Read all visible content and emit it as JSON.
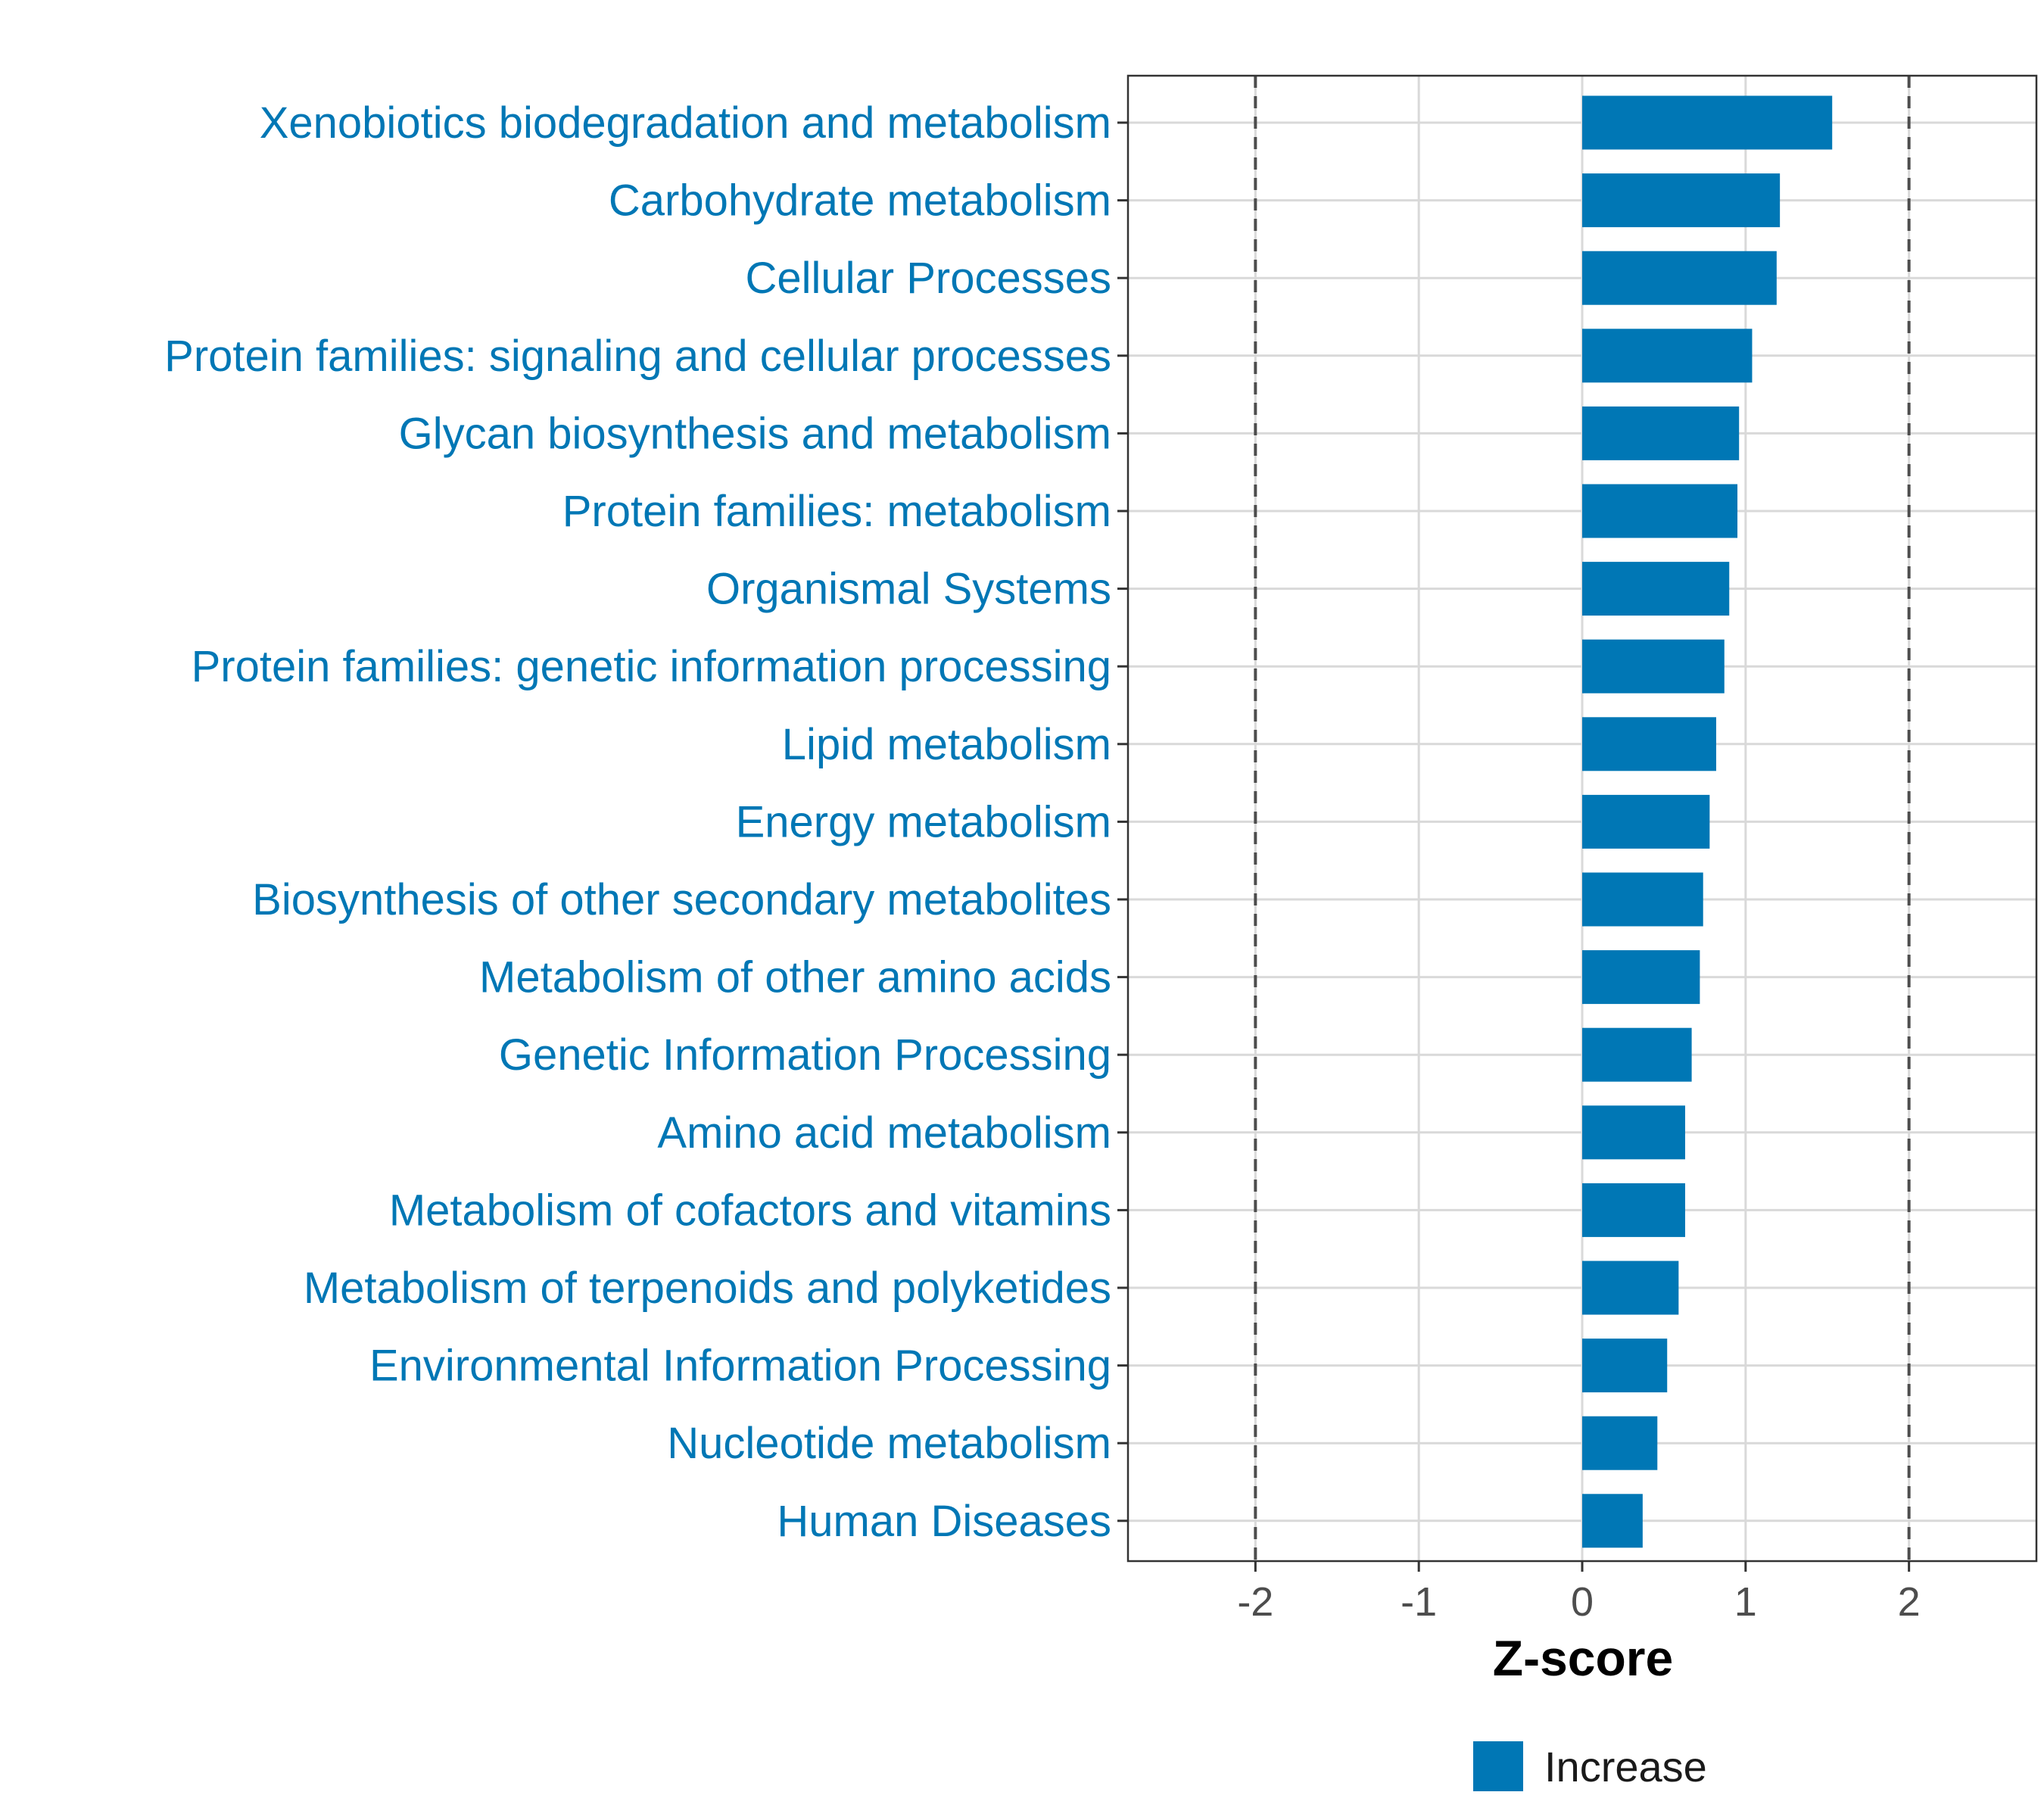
{
  "chart_data": {
    "type": "bar",
    "orientation": "horizontal",
    "title": "",
    "xlabel": "Z-score",
    "ylabel": "",
    "xlim": [
      -2.78,
      2.78
    ],
    "x_ticks": [
      "-2",
      "-1",
      "0",
      "1",
      "2"
    ],
    "x_tick_values": [
      -2,
      -1,
      0,
      1,
      2
    ],
    "reference_lines": [
      -2,
      2
    ],
    "grid": true,
    "legend": {
      "position": "bottom",
      "entries": [
        {
          "name": "Increase",
          "color": "#0077b5"
        }
      ]
    },
    "categories": [
      "Xenobiotics biodegradation and metabolism",
      "Carbohydrate metabolism",
      "Cellular Processes",
      "Protein families: signaling and cellular processes",
      "Glycan biosynthesis and metabolism",
      "Protein families: metabolism",
      "Organismal Systems",
      "Protein families: genetic information processing",
      "Lipid metabolism",
      "Energy metabolism",
      "Biosynthesis of other secondary metabolites",
      "Metabolism of other amino acids",
      "Genetic Information Processing",
      "Amino acid metabolism",
      "Metabolism of cofactors and vitamins",
      "Metabolism of terpenoids and polyketides",
      "Environmental Information Processing",
      "Nucleotide metabolism",
      "Human Diseases"
    ],
    "values": [
      1.53,
      1.21,
      1.19,
      1.04,
      0.96,
      0.95,
      0.9,
      0.87,
      0.82,
      0.78,
      0.74,
      0.72,
      0.67,
      0.63,
      0.63,
      0.59,
      0.52,
      0.46,
      0.37
    ],
    "series": [
      {
        "name": "Increase",
        "color": "#0077b5"
      }
    ]
  }
}
